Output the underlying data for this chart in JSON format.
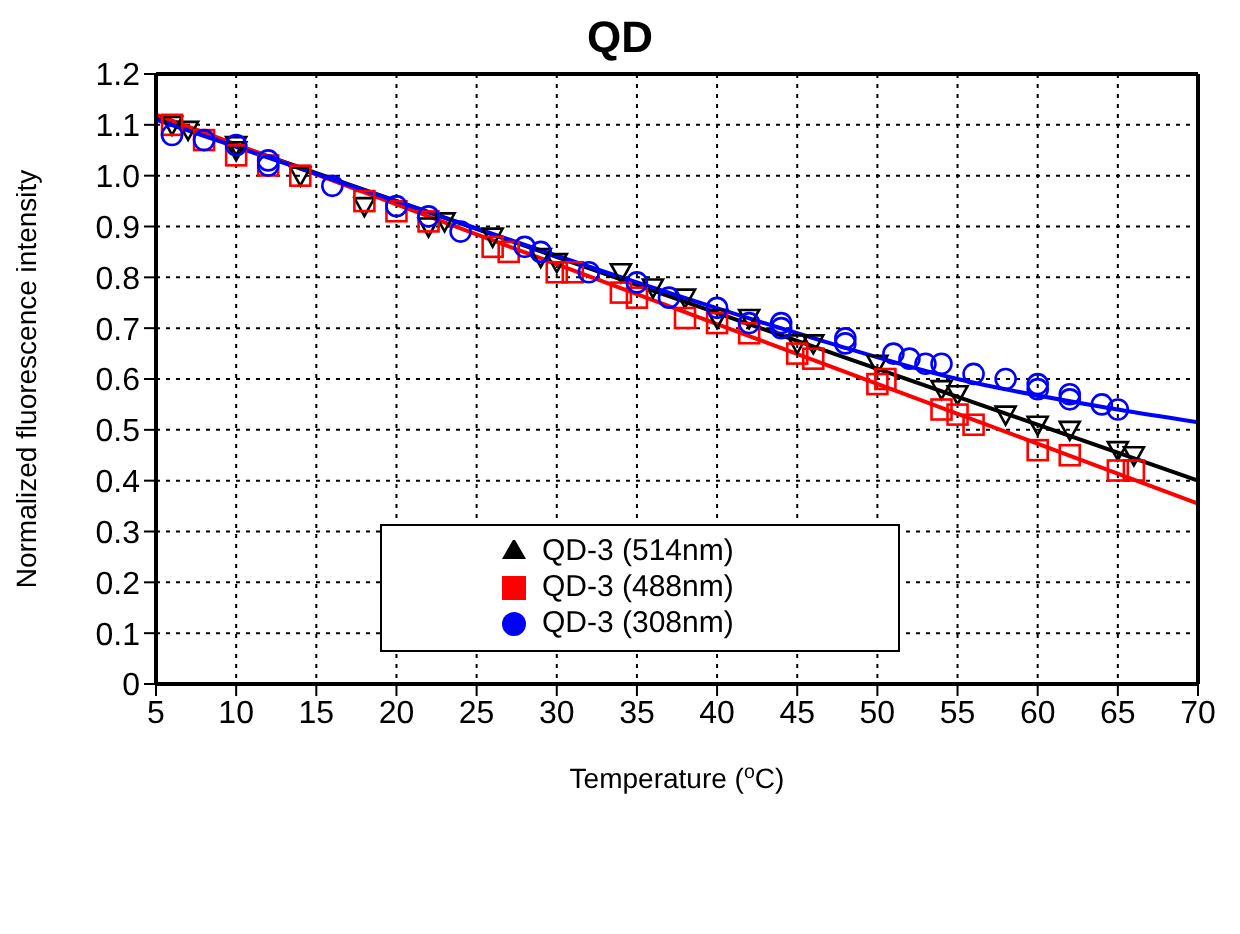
{
  "chart_data": {
    "type": "scatter",
    "title": "QD",
    "xlabel": "Temperature ($^{o}$C)",
    "ylabel": "Normalized fluorescence intensity",
    "xlim": [
      5,
      70
    ],
    "xticks": [
      5,
      10,
      15,
      20,
      25,
      30,
      35,
      40,
      45,
      50,
      55,
      60,
      65,
      70
    ],
    "ylim": [
      0,
      1.2
    ],
    "yticks": [
      0,
      0.1,
      0.2,
      0.3,
      0.4,
      0.5,
      0.6,
      0.7,
      0.8,
      0.9,
      {
        "value": 1,
        "label": "1.0"
      },
      1.1,
      1.2
    ],
    "grid": true,
    "legend": "bottom",
    "series": [
      {
        "name": "QD-3 (514nm)",
        "color": "#000000",
        "marker": "triangle",
        "x": [
          6,
          7,
          10,
          10,
          14,
          18,
          22,
          23,
          26,
          29,
          30,
          34,
          36,
          38,
          40,
          42,
          45,
          46,
          50,
          54,
          55,
          58,
          60,
          62,
          65,
          66
        ],
        "values": [
          1.1,
          1.09,
          1.06,
          1.05,
          1.0,
          0.94,
          0.9,
          0.91,
          0.88,
          0.84,
          0.83,
          0.81,
          0.78,
          0.76,
          0.72,
          0.72,
          0.67,
          0.67,
          0.63,
          0.58,
          0.57,
          0.53,
          0.51,
          0.5,
          0.46,
          0.45
        ]
      },
      {
        "name": "QD-3 (488nm)",
        "color": "#ff0000",
        "marker": "square",
        "x": [
          6,
          8,
          10,
          12,
          14,
          18,
          20,
          22,
          26,
          27,
          30,
          31,
          34,
          35,
          38,
          40,
          42,
          45,
          46,
          50,
          50.5,
          54,
          55,
          56,
          60,
          62,
          65,
          66
        ],
        "values": [
          1.1,
          1.07,
          1.04,
          1.02,
          1.0,
          0.95,
          0.93,
          0.91,
          0.86,
          0.85,
          0.81,
          0.81,
          0.77,
          0.76,
          0.72,
          0.71,
          0.69,
          0.65,
          0.64,
          0.59,
          0.6,
          0.54,
          0.53,
          0.51,
          0.46,
          0.45,
          0.42,
          0.42
        ]
      },
      {
        "name": "QD-3 (308nm)",
        "color": "#0000ff",
        "marker": "circle",
        "x": [
          6,
          8,
          10,
          12,
          12,
          16,
          20,
          22,
          24,
          28,
          29,
          32,
          35,
          37,
          40,
          42,
          44,
          44,
          48,
          48,
          51,
          52,
          53,
          54,
          56,
          58,
          60,
          60,
          62,
          62,
          64,
          65
        ],
        "values": [
          1.08,
          1.07,
          1.06,
          1.03,
          1.02,
          0.98,
          0.94,
          0.92,
          0.89,
          0.86,
          0.85,
          0.81,
          0.79,
          0.76,
          0.74,
          0.71,
          0.71,
          0.7,
          0.68,
          0.67,
          0.65,
          0.64,
          0.63,
          0.63,
          0.61,
          0.6,
          0.59,
          0.58,
          0.57,
          0.56,
          0.55,
          0.54
        ]
      },
      {
        "type": "line",
        "color": "#000000",
        "x": [
          5,
          70
        ],
        "values": [
          1.115,
          0.4
        ]
      },
      {
        "type": "line",
        "color": "#ff0000",
        "x": [
          5,
          70
        ],
        "values": [
          1.12,
          0.355
        ]
      },
      {
        "type": "line",
        "color": "#0000ff",
        "x": [
          5,
          20,
          35,
          45,
          55,
          65,
          70
        ],
        "values": [
          1.11,
          0.95,
          0.79,
          0.69,
          0.6,
          0.54,
          0.515
        ]
      }
    ]
  }
}
